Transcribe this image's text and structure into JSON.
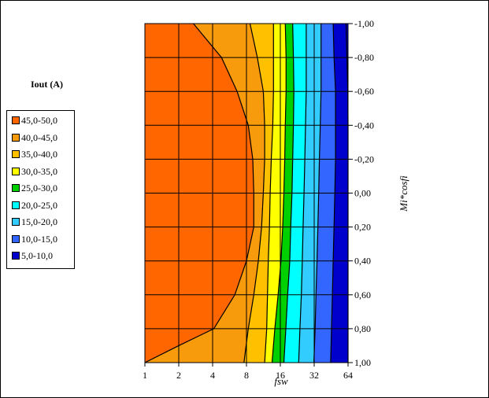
{
  "chart_data": {
    "type": "heatmap",
    "title": "",
    "xlabel": "fsw",
    "ylabel": "Mi*cosfi",
    "x_ticks": [
      "1",
      "2",
      "4",
      "8",
      "16",
      "32",
      "64"
    ],
    "y_ticks": [
      "-1,00",
      "-0,80",
      "-0,60",
      "-0,40",
      "-0,20",
      "0,00",
      "0,20",
      "0,40",
      "0,60",
      "0,80",
      "1,00"
    ],
    "x_scale": "log2",
    "xlim": [
      1,
      64
    ],
    "ylim": [
      -1.0,
      1.0
    ],
    "y_direction": "down",
    "grid": true,
    "legend_title": "Iout (A)",
    "legend_position": "left",
    "bands": [
      {
        "label": "45,0-50,0",
        "color": "#FF6600"
      },
      {
        "label": "40,0-45,0",
        "color": "#F79A0B"
      },
      {
        "label": "35,0-40,0",
        "color": "#FFC000"
      },
      {
        "label": "30,0-35,0",
        "color": "#FFFF00"
      },
      {
        "label": "25,0-30,0",
        "color": "#00D000"
      },
      {
        "label": "20,0-25,0",
        "color": "#00FFFF"
      },
      {
        "label": "15,0-20,0",
        "color": "#33CCFF"
      },
      {
        "label": "10,0-15,0",
        "color": "#3366FF"
      },
      {
        "label": "5,0-10,0",
        "color": "#0000CC"
      }
    ],
    "contours": [
      {
        "level": 45,
        "points": [
          [
            2.7,
            -1.0
          ],
          [
            4.8,
            -0.8
          ],
          [
            6.6,
            -0.6
          ],
          [
            8.3,
            -0.4
          ],
          [
            9.1,
            -0.2
          ],
          [
            9.3,
            0.0
          ],
          [
            9.3,
            0.2
          ],
          [
            8.0,
            0.4
          ],
          [
            6.3,
            0.6
          ],
          [
            4.1,
            0.8
          ],
          [
            2.0,
            0.9
          ],
          [
            1.0,
            1.0
          ]
        ]
      },
      {
        "level": 40,
        "points": [
          [
            8.6,
            -1.0
          ],
          [
            10.0,
            -0.8
          ],
          [
            11.3,
            -0.6
          ],
          [
            11.6,
            -0.4
          ],
          [
            11.6,
            -0.2
          ],
          [
            11.3,
            0.0
          ],
          [
            10.9,
            0.2
          ],
          [
            10.2,
            0.4
          ],
          [
            9.3,
            0.6
          ],
          [
            8.3,
            0.8
          ],
          [
            7.6,
            1.0
          ]
        ]
      },
      {
        "level": 35,
        "points": [
          [
            13.9,
            -1.0
          ],
          [
            13.9,
            -0.8
          ],
          [
            13.9,
            -0.6
          ],
          [
            13.7,
            -0.4
          ],
          [
            13.3,
            -0.2
          ],
          [
            13.0,
            0.0
          ],
          [
            12.8,
            0.2
          ],
          [
            12.5,
            0.4
          ],
          [
            12.3,
            0.6
          ],
          [
            12.1,
            0.8
          ],
          [
            11.6,
            1.0
          ]
        ]
      },
      {
        "level": 30,
        "points": [
          [
            17.7,
            -1.0
          ],
          [
            18.0,
            -0.8
          ],
          [
            18.0,
            -0.6
          ],
          [
            17.7,
            -0.4
          ],
          [
            17.5,
            -0.2
          ],
          [
            17.2,
            0.0
          ],
          [
            16.8,
            0.2
          ],
          [
            16.2,
            0.4
          ],
          [
            15.3,
            0.6
          ],
          [
            14.3,
            0.8
          ],
          [
            13.5,
            1.0
          ]
        ]
      },
      {
        "level": 25,
        "points": [
          [
            20.6,
            -1.0
          ],
          [
            20.9,
            -0.8
          ],
          [
            21.1,
            -0.6
          ],
          [
            20.9,
            -0.4
          ],
          [
            20.6,
            -0.2
          ],
          [
            20.3,
            0.0
          ],
          [
            19.8,
            0.2
          ],
          [
            19.4,
            0.4
          ],
          [
            18.6,
            0.6
          ],
          [
            17.9,
            0.8
          ],
          [
            17.2,
            1.0
          ]
        ]
      },
      {
        "level": 20,
        "points": [
          [
            27.2,
            -1.0
          ],
          [
            27.2,
            -0.8
          ],
          [
            27.2,
            -0.6
          ],
          [
            26.8,
            -0.4
          ],
          [
            26.4,
            -0.2
          ],
          [
            26.0,
            0.0
          ],
          [
            25.5,
            0.2
          ],
          [
            25.1,
            0.4
          ],
          [
            24.6,
            0.6
          ],
          [
            23.9,
            0.8
          ],
          [
            23.3,
            1.0
          ]
        ]
      },
      {
        "level": 15,
        "points": [
          [
            36.8,
            -1.0
          ],
          [
            36.8,
            -0.8
          ],
          [
            36.8,
            -0.6
          ],
          [
            36.2,
            -0.4
          ],
          [
            35.6,
            -0.2
          ],
          [
            35.1,
            0.0
          ],
          [
            34.5,
            0.2
          ],
          [
            33.9,
            0.4
          ],
          [
            33.2,
            0.6
          ],
          [
            32.6,
            0.8
          ],
          [
            31.8,
            1.0
          ]
        ]
      },
      {
        "level": 10,
        "points": [
          [
            47.2,
            -1.0
          ],
          [
            48.0,
            -0.8
          ],
          [
            49.5,
            -0.6
          ],
          [
            49.5,
            -0.4
          ],
          [
            49.5,
            -0.2
          ],
          [
            48.8,
            0.0
          ],
          [
            48.0,
            0.2
          ],
          [
            47.2,
            0.4
          ],
          [
            46.4,
            0.6
          ],
          [
            45.6,
            0.8
          ],
          [
            44.8,
            1.0
          ]
        ]
      },
      {
        "level": 5,
        "points": [
          [
            61.5,
            -1.0
          ],
          [
            62.6,
            -0.8
          ],
          [
            63.7,
            -0.6
          ],
          [
            64.0,
            -0.4
          ],
          [
            64.0,
            1.0
          ]
        ]
      }
    ]
  }
}
